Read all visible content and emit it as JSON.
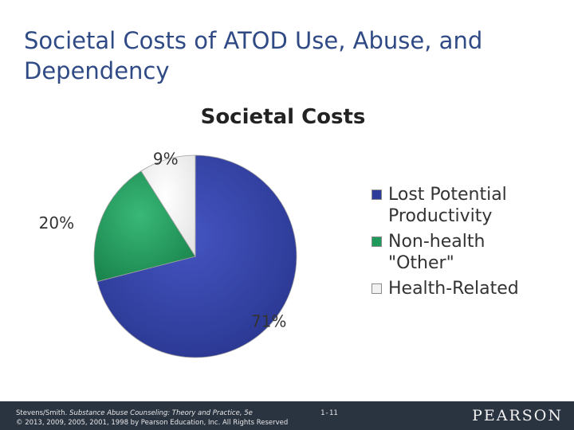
{
  "slide": {
    "title": "Societal Costs of ATOD Use, Abuse, and Dependency"
  },
  "chart_data": {
    "type": "pie",
    "title": "Societal Costs",
    "categories": [
      "Lost Potential Productivity",
      "Non-health \"Other\"",
      "Health-Related"
    ],
    "values": [
      71,
      20,
      9
    ],
    "data_labels": [
      "71%",
      "20%",
      "9%"
    ],
    "colors": [
      "#2f3d9a",
      "#1f9a5b",
      "#f1f1f1"
    ],
    "legend_position": "right"
  },
  "legend": {
    "items": [
      {
        "label": "Lost Potential\nProductivity",
        "color": "#2f3d9a"
      },
      {
        "label": "Non-health\n\"Other\"",
        "color": "#1f9a5b"
      },
      {
        "label": "Health-Related",
        "color": "#f1f1f1"
      }
    ]
  },
  "footer": {
    "credit_authors": "Stevens/Smith. ",
    "credit_book": "Substance Abuse Counseling: Theory and Practice, 5e",
    "credit_copyright": "© 2013, 2009, 2005, 2001, 1998 by Pearson Education, Inc. All Rights Reserved",
    "page_number": "1-11",
    "brand": "PEARSON"
  }
}
